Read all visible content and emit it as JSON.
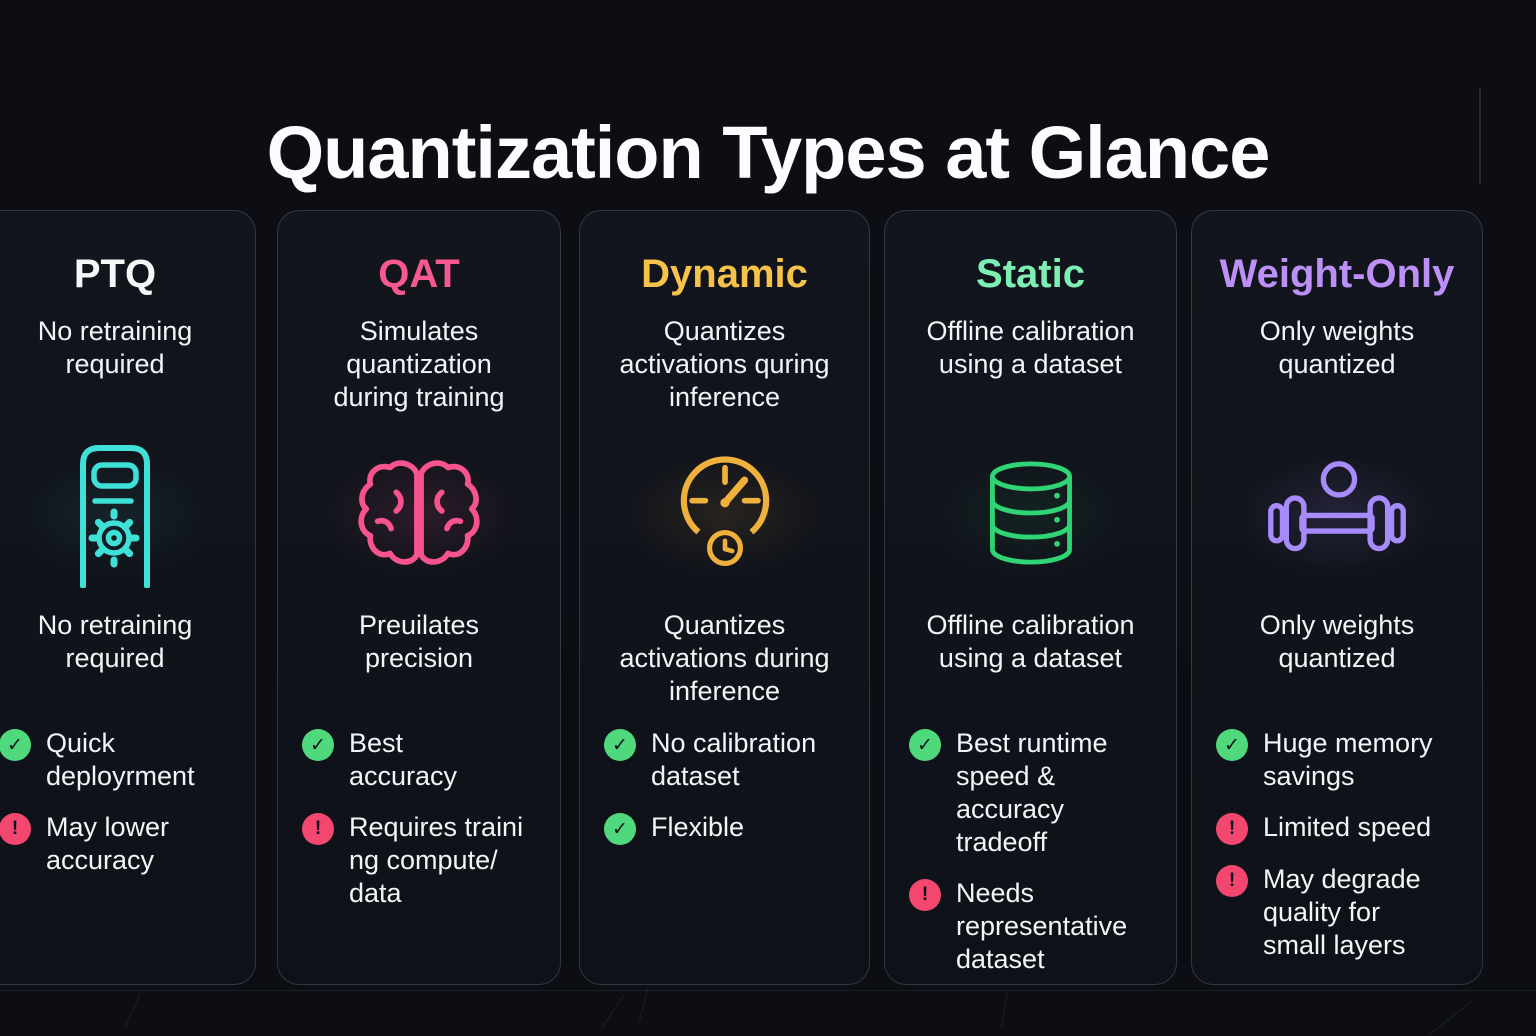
{
  "page": {
    "title": "Quantization Types at Glance",
    "background": "#0c0e14"
  },
  "badge_colors": {
    "check": "#4fd97c",
    "warn": "#f4476f",
    "glyph": "#10131a"
  },
  "cards": [
    {
      "id": "ptq",
      "title": "PTQ",
      "title_color": "#f6f7f9",
      "accent": "#3fe0d8",
      "glow": "rgba(63,224,216,0.08)",
      "icon": "server-gear-icon",
      "subtitle": "No retraining\nrequired",
      "description": "No retraining\nrequired",
      "bullets": [
        {
          "type": "check",
          "text": "Quick\ndeployrment"
        },
        {
          "type": "warn",
          "text": "May lower\naccuracy"
        }
      ]
    },
    {
      "id": "qat",
      "title": "QAT",
      "title_color": "#f75890",
      "accent": "#f7538f",
      "glow": "rgba(247,83,143,0.13)",
      "icon": "brain-icon",
      "subtitle": "Simulates\nquantization\nduring training",
      "description": "Preuilates\nprecision",
      "bullets": [
        {
          "type": "check",
          "text": "Best\naccuracy"
        },
        {
          "type": "warn",
          "text": "Requires traini\nng compute/\ndata"
        }
      ]
    },
    {
      "id": "dynamic",
      "title": "Dynamic",
      "title_color": "#f6c24a",
      "accent": "#f0b13c",
      "glow": "rgba(240,177,60,0.10)",
      "icon": "gauge-clock-icon",
      "subtitle": "Quantizes\nactivations quring\ninference",
      "description": "Quantizes\nactivations during\ninference",
      "bullets": [
        {
          "type": "check",
          "text": "No calibration\ndataset"
        },
        {
          "type": "check",
          "text": "Flexible"
        }
      ]
    },
    {
      "id": "static",
      "title": "Static",
      "title_color": "#7deeb4",
      "accent": "#2fd575",
      "glow": "rgba(47,213,117,0.08)",
      "icon": "database-icon",
      "subtitle": "Offline calibration\nusing a dataset",
      "description": "Offline calibration\nusing a dataset",
      "bullets": [
        {
          "type": "check",
          "text": "Best runtime\nspeed &\naccuracy\ntradeoff"
        },
        {
          "type": "warn",
          "text": "Needs\nrepresentative\ndataset"
        }
      ]
    },
    {
      "id": "weight-only",
      "title": "Weight-Only",
      "title_color": "#bd90f8",
      "accent": "#a78bfa",
      "glow": "rgba(167,139,250,0.13)",
      "icon": "dumbbell-icon",
      "subtitle": "Only weights\nquantized",
      "description": "Only weights\nquantized",
      "bullets": [
        {
          "type": "check",
          "text": "Huge memory\nsavings"
        },
        {
          "type": "warn",
          "text": "Limited speed"
        },
        {
          "type": "warn",
          "text": "May degrade\nquality for\nsmall layers"
        }
      ]
    }
  ]
}
